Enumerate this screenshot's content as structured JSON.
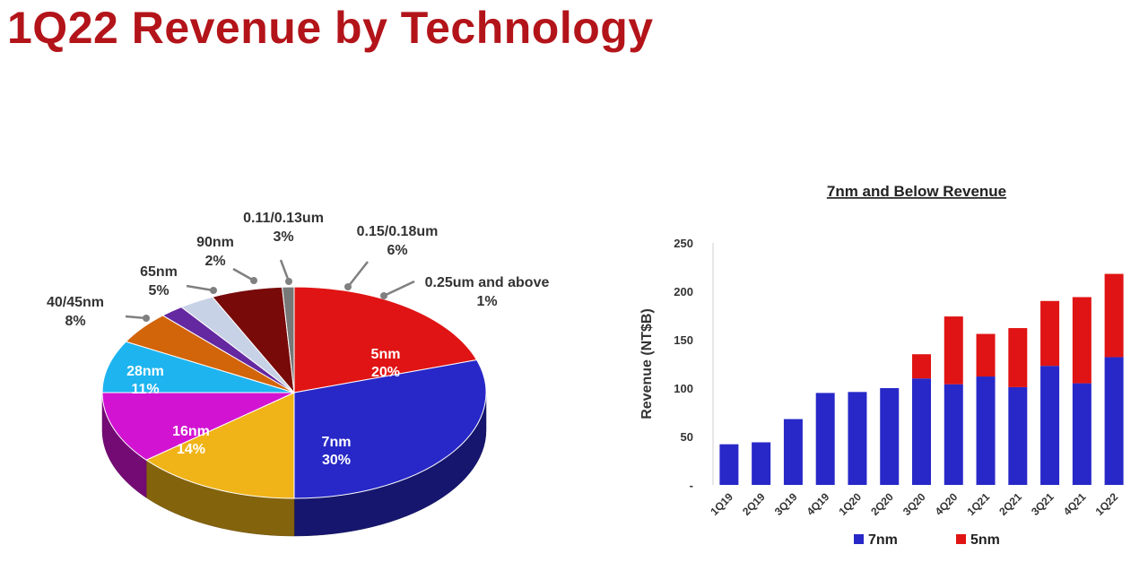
{
  "title": "1Q22 Revenue by Technology",
  "chart_data": [
    {
      "type": "pie",
      "slices": [
        {
          "label": "5nm",
          "value": 20,
          "text": "20%",
          "color": "#e01414"
        },
        {
          "label": "7nm",
          "value": 30,
          "text": "30%",
          "color": "#2828c8"
        },
        {
          "label": "16nm",
          "value": 14,
          "text": "14%",
          "color": "#f0b418"
        },
        {
          "label": "28nm",
          "value": 11,
          "text": "11%",
          "color": "#d214d2"
        },
        {
          "label": "40/45nm",
          "value": 8,
          "text": "8%",
          "color": "#1eb4f0"
        },
        {
          "label": "65nm",
          "value": 5,
          "text": "5%",
          "color": "#d2640a"
        },
        {
          "label": "90nm",
          "value": 2,
          "text": "2%",
          "color": "#6428a0"
        },
        {
          "label": "0.11/0.13um",
          "value": 3,
          "text": "3%",
          "color": "#c8d2e6"
        },
        {
          "label": "0.15/0.18um",
          "value": 6,
          "text": "6%",
          "color": "#780a0a"
        },
        {
          "label": "0.25um and above",
          "value": 1,
          "text": "1%",
          "color": "#787878"
        }
      ]
    },
    {
      "type": "bar",
      "stacked": true,
      "title": "7nm and Below Revenue",
      "ylabel": "Revenue (NT$B)",
      "ylim": [
        0,
        250
      ],
      "yticks": [
        "-",
        "50",
        "100",
        "150",
        "200",
        "250"
      ],
      "categories": [
        "1Q19",
        "2Q19",
        "3Q19",
        "4Q19",
        "1Q20",
        "2Q20",
        "3Q20",
        "4Q20",
        "1Q21",
        "2Q21",
        "3Q21",
        "4Q21",
        "1Q22"
      ],
      "series": [
        {
          "name": "7nm",
          "color": "#2828c8",
          "values": [
            42,
            44,
            68,
            95,
            96,
            100,
            110,
            104,
            112,
            101,
            123,
            105,
            132
          ]
        },
        {
          "name": "5nm",
          "color": "#e01414",
          "values": [
            0,
            0,
            0,
            0,
            0,
            0,
            25,
            70,
            44,
            61,
            67,
            89,
            86
          ]
        }
      ],
      "legend_position": "bottom"
    }
  ]
}
